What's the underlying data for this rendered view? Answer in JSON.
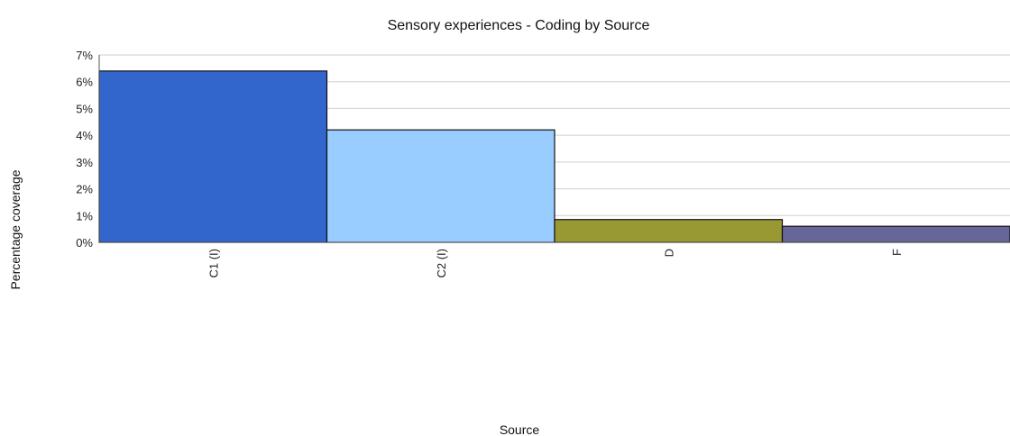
{
  "chart_data": {
    "type": "bar",
    "title": "Sensory experiences - Coding by Source",
    "xlabel": "Source",
    "ylabel": "Percentage coverage",
    "categories": [
      "C1 (I)",
      "C2 (I)",
      "D",
      "F"
    ],
    "values": [
      6.4,
      4.2,
      0.85,
      0.6
    ],
    "colors": [
      "#3366cc",
      "#99ccff",
      "#999933",
      "#666699"
    ],
    "ylim": [
      0,
      7
    ],
    "yticks": [
      "0%",
      "1%",
      "2%",
      "3%",
      "4%",
      "5%",
      "6%",
      "7%"
    ],
    "grid": true,
    "legend": "none"
  }
}
